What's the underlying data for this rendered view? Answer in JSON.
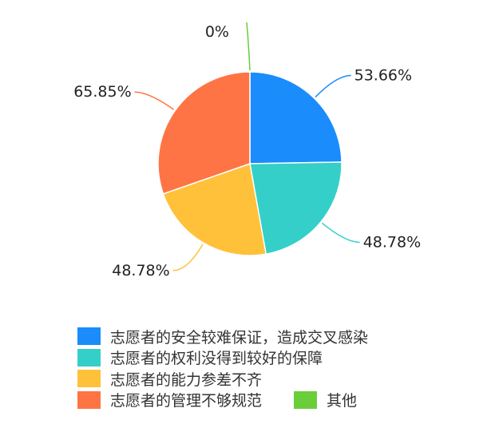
{
  "chart_data": {
    "type": "pie",
    "categories": [
      "志愿者的安全较难保证，造成交叉感染",
      "志愿者的权利没得到较好的保障",
      "志愿者的能力参差不齐",
      "志愿者的管理不够规范",
      "其他"
    ],
    "values": [
      53.66,
      48.78,
      48.78,
      65.85,
      0
    ],
    "labels": [
      "53.66%",
      "48.78%",
      "48.78%",
      "65.85%",
      "0%"
    ],
    "colors": [
      "#1a8cfb",
      "#35cfc9",
      "#ffc13a",
      "#ff7444",
      "#6acd3a"
    ],
    "legend_position": "bottom"
  }
}
